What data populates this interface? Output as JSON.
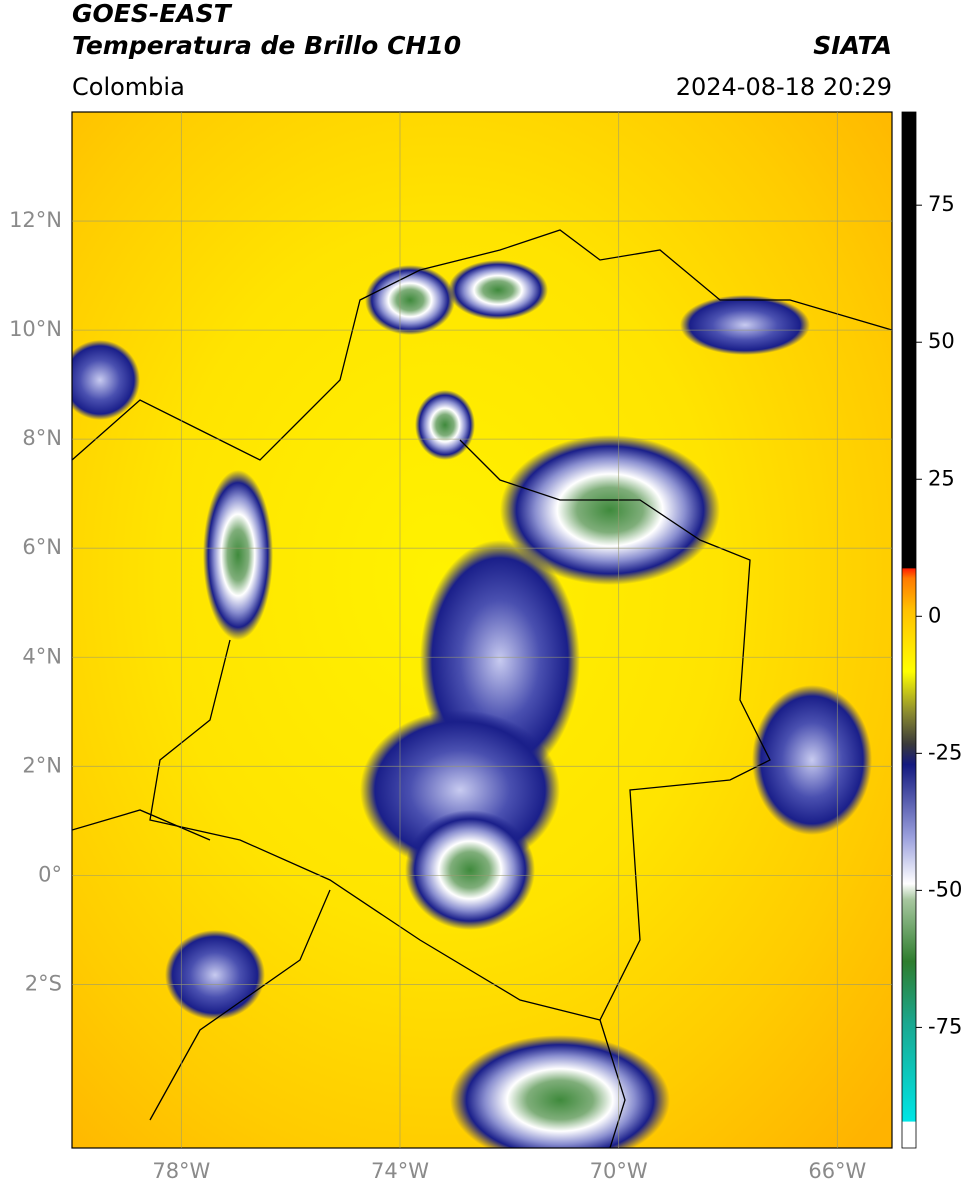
{
  "header": {
    "title": "GOES-EAST",
    "subtitle": "Temperatura de Brillo CH10",
    "source": "SIATA",
    "region": "Colombia",
    "datetime": "2024-08-18 20:29"
  },
  "map": {
    "xlim": [
      -80,
      -65
    ],
    "ylim": [
      -5,
      14
    ],
    "grid": true,
    "xticks": [
      {
        "value": -78,
        "label": "78°W"
      },
      {
        "value": -74,
        "label": "74°W"
      },
      {
        "value": -70,
        "label": "70°W"
      },
      {
        "value": -66,
        "label": "66°W"
      }
    ],
    "yticks": [
      {
        "value": 12,
        "label": "12°N"
      },
      {
        "value": 10,
        "label": "10°N"
      },
      {
        "value": 8,
        "label": "8°N"
      },
      {
        "value": 6,
        "label": "6°N"
      },
      {
        "value": 4,
        "label": "4°N"
      },
      {
        "value": 2,
        "label": "2°N"
      },
      {
        "value": 0,
        "label": "0°"
      },
      {
        "value": -2,
        "label": "2°S"
      }
    ]
  },
  "colorbar": {
    "lim": [
      -97,
      92
    ],
    "ticks": [
      75,
      50,
      25,
      0,
      -25,
      -50,
      -75
    ]
  }
}
